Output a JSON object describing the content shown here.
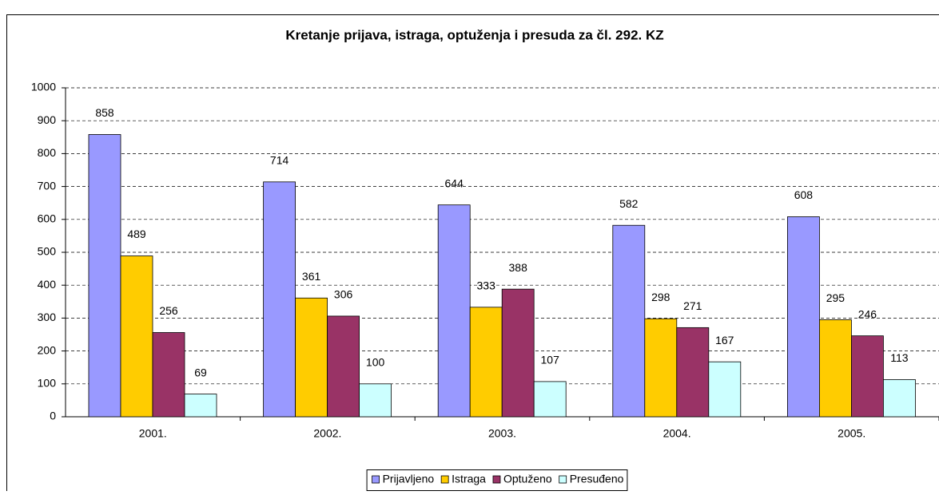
{
  "chart_data": {
    "type": "bar",
    "title": "Kretanje prijava, istraga, optuženja i presuda za čl. 292. KZ",
    "categories": [
      "2001.",
      "2002.",
      "2003.",
      "2004.",
      "2005."
    ],
    "series": [
      {
        "name": "Prijavljeno",
        "color": "#9999ff",
        "values": [
          858,
          714,
          644,
          582,
          608
        ]
      },
      {
        "name": "Istraga",
        "color": "#ffcc00",
        "values": [
          489,
          361,
          333,
          298,
          295
        ]
      },
      {
        "name": "Optuženo",
        "color": "#993366",
        "values": [
          256,
          306,
          388,
          271,
          246
        ]
      },
      {
        "name": "Presuđeno",
        "color": "#ccffff",
        "values": [
          69,
          100,
          107,
          167,
          113
        ]
      }
    ],
    "ylim": [
      0,
      1000
    ],
    "yticks": [
      0,
      100,
      200,
      300,
      400,
      500,
      600,
      700,
      800,
      900,
      1000
    ],
    "grid": true,
    "legend": "bottom"
  }
}
